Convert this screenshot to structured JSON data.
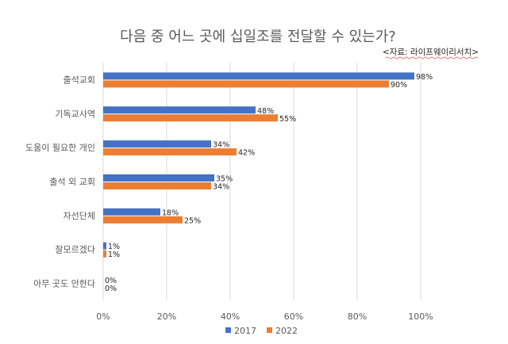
{
  "chart_data": {
    "type": "bar",
    "orientation": "horizontal",
    "title": "다음 중 어느 곳에 십일조를 전달할 수 있는가?",
    "source": "<자료: 라이프웨이리서치>",
    "categories": [
      "출석교회",
      "기독교사역",
      "도움이 필요한 개인",
      "출석 외 교회",
      "자선단체",
      "잘모르겠다",
      "아무 곳도 안한다"
    ],
    "series": [
      {
        "name": "2017",
        "color": "#4472C4",
        "values": [
          98,
          48,
          34,
          35,
          18,
          1,
          0
        ]
      },
      {
        "name": "2022",
        "color": "#ED7D31",
        "values": [
          90,
          55,
          42,
          34,
          25,
          1,
          0
        ]
      }
    ],
    "xlim": [
      0,
      100
    ],
    "xticks": [
      "0%",
      "20%",
      "40%",
      "60%",
      "80%",
      "100%"
    ],
    "value_suffix": "%",
    "grid": true,
    "legend": "bottom"
  }
}
